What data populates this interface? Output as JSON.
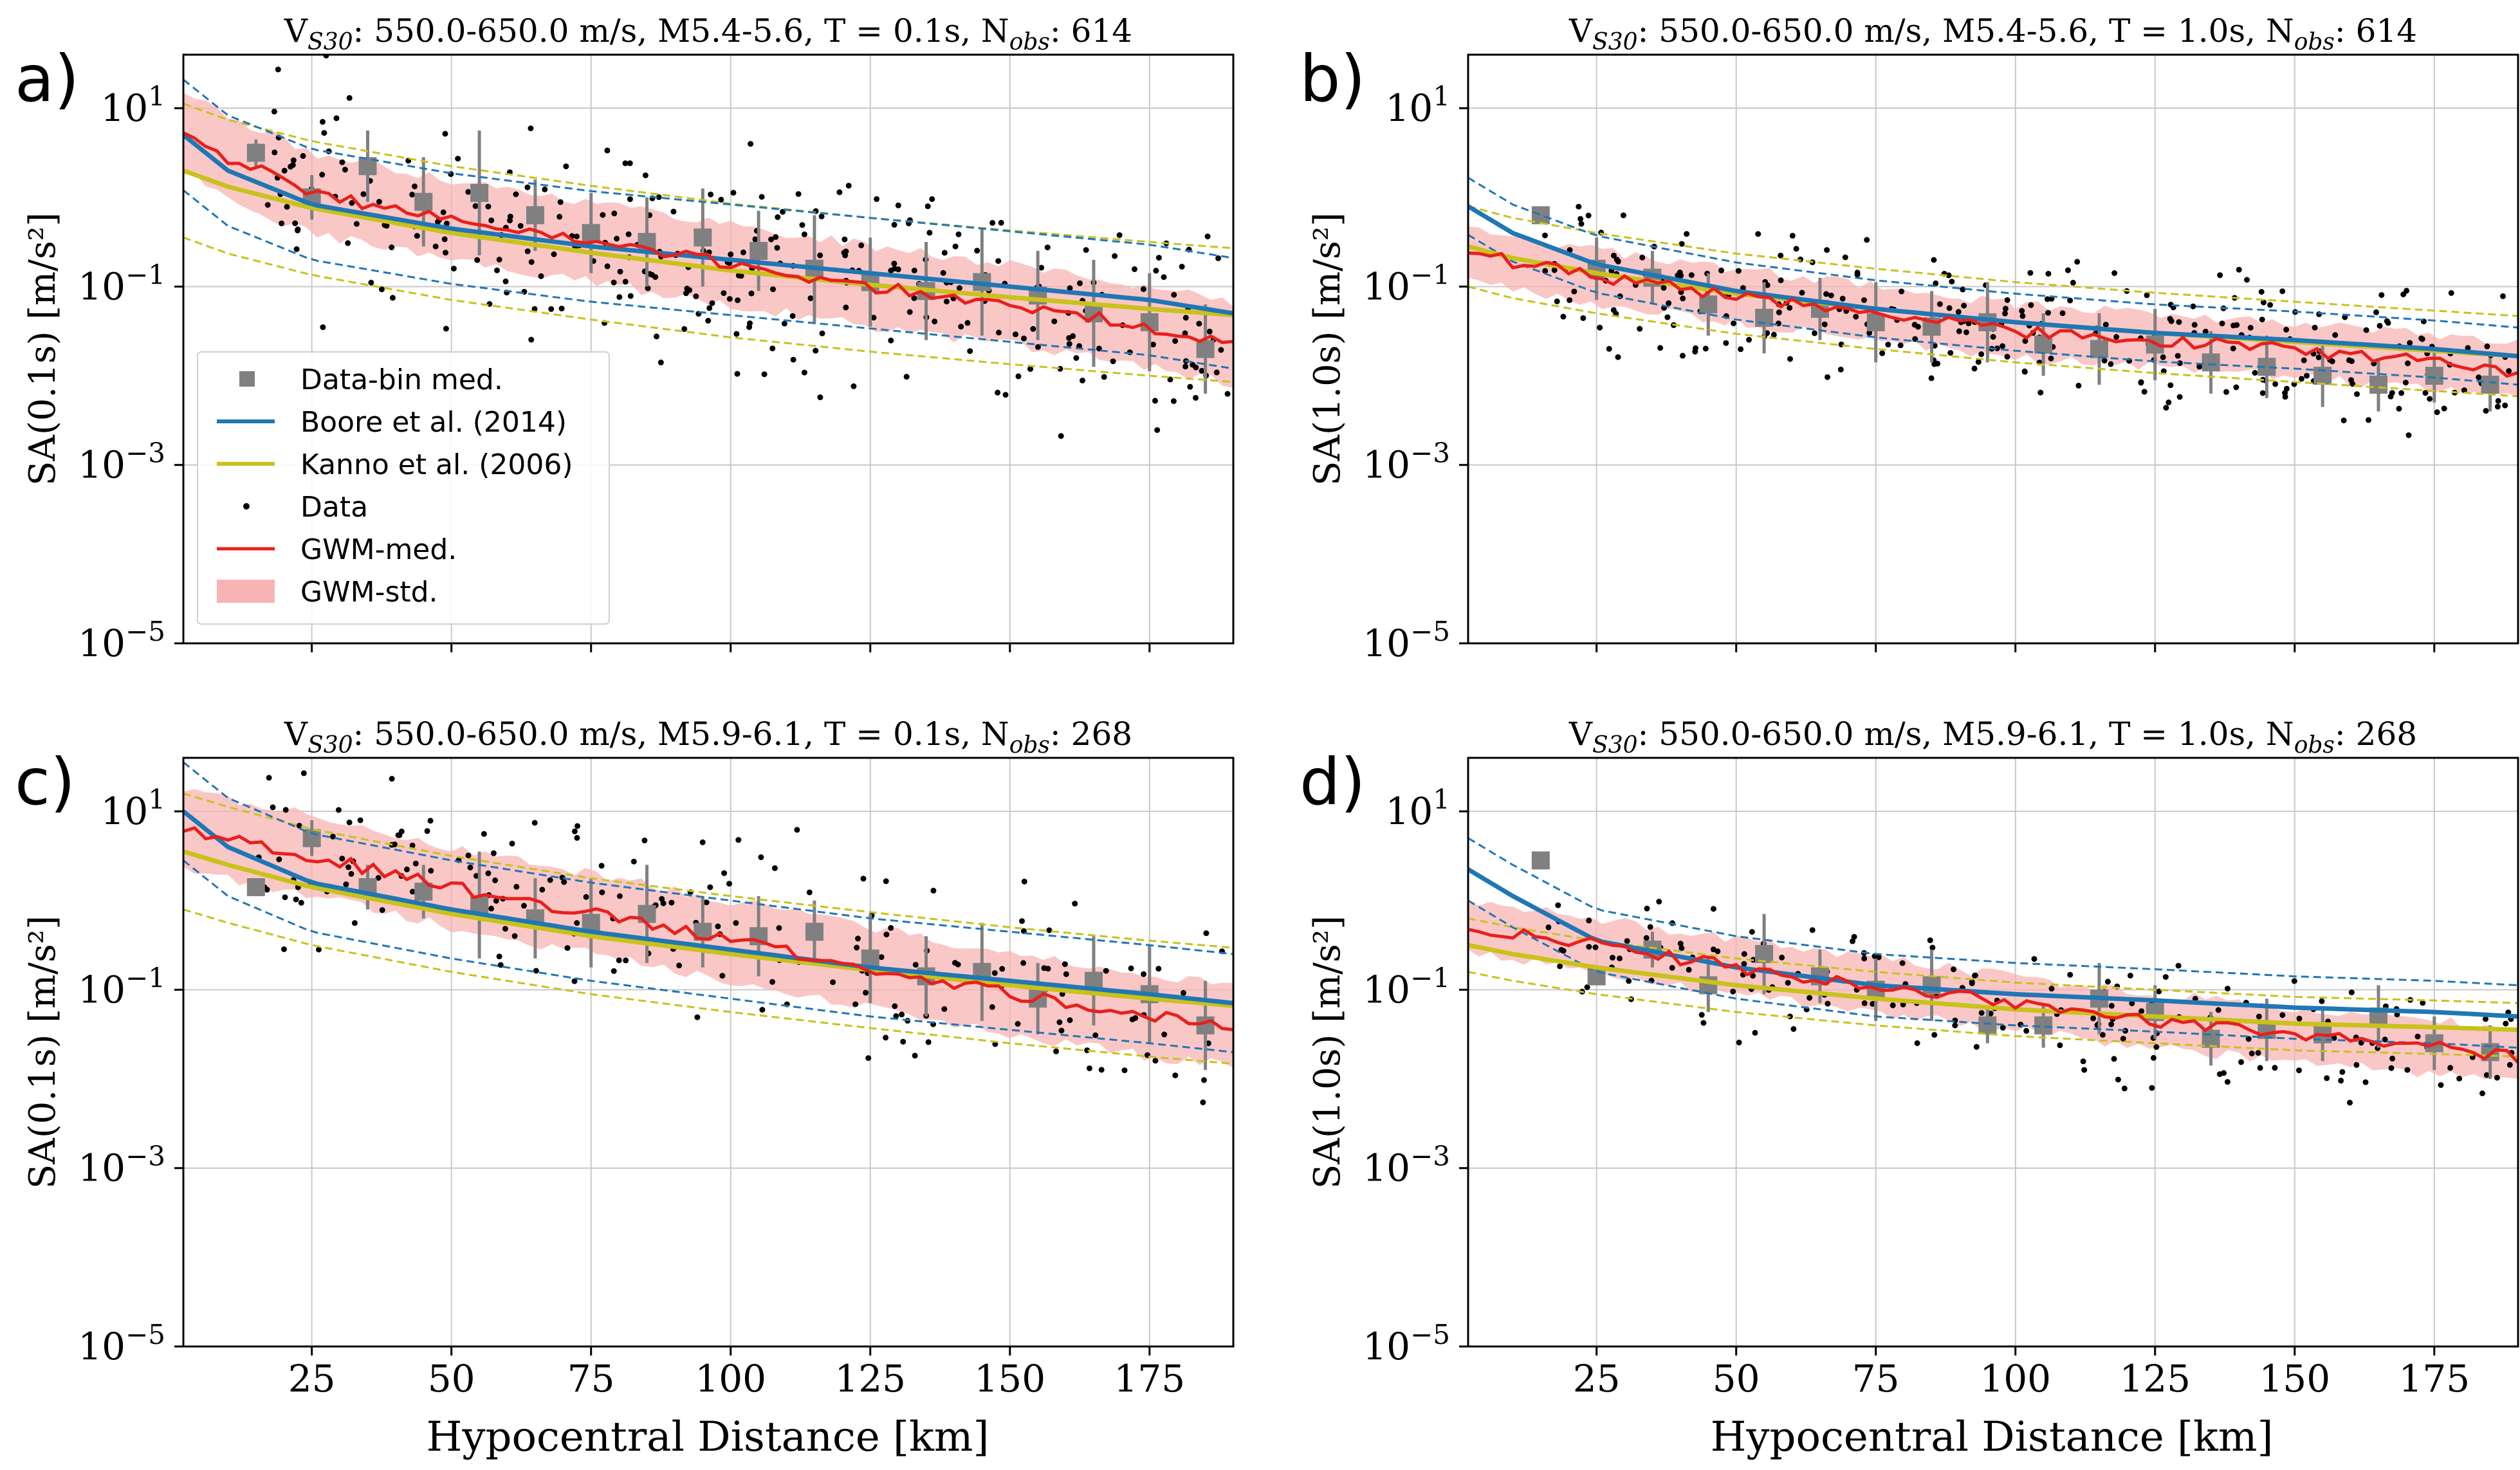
{
  "figure": {
    "xlabel": "Hypocentral Distance [km]",
    "legend": {
      "items": [
        {
          "key": "bins",
          "label": "Data-bin med."
        },
        {
          "key": "boore",
          "label": "Boore et al. (2014)"
        },
        {
          "key": "kanno",
          "label": "Kanno et al. (2006)"
        },
        {
          "key": "data",
          "label": "Data"
        },
        {
          "key": "gwm",
          "label": "GWM-med."
        },
        {
          "key": "gwmstd",
          "label": "GWM-std."
        }
      ]
    }
  },
  "colors": {
    "boore": "#1f77b4",
    "kanno": "#c8c21a",
    "gwm": "#e8201c",
    "gwm_band": "#f8b4b4",
    "bins": "#808080",
    "data": "#000000",
    "grid": "#c8c8c8"
  },
  "chart_data": [
    {
      "type": "line",
      "panel_letter": "a)",
      "title": {
        "vs_prefix": "V",
        "vs_sub": "S30",
        "range": ": 550.0-650.0 m/s,  M5.4-5.6, T = 0.1s, N",
        "n_sub": "obs",
        "n_val": ": 614"
      },
      "ylabel": "SA(0.1s) [m/s²]",
      "xlim": [
        2,
        190
      ],
      "ylim_log10": [
        -5,
        1.6
      ],
      "xticks": [
        25,
        50,
        75,
        100,
        125,
        150,
        175
      ],
      "yticks_exp": [
        -5,
        -3,
        -1,
        1
      ],
      "show_xticklabels": false,
      "show_legend": true,
      "boore": {
        "log10_at_d": [
          [
            2,
            0.7
          ],
          [
            10,
            0.3
          ],
          [
            25,
            -0.08
          ],
          [
            50,
            -0.35
          ],
          [
            75,
            -0.55
          ],
          [
            100,
            -0.7
          ],
          [
            125,
            -0.85
          ],
          [
            150,
            -1.0
          ],
          [
            175,
            -1.15
          ],
          [
            190,
            -1.3
          ]
        ],
        "sigma": 0.62
      },
      "kanno": {
        "log10_at_d": [
          [
            2,
            0.3
          ],
          [
            10,
            0.12
          ],
          [
            25,
            -0.12
          ],
          [
            50,
            -0.4
          ],
          [
            75,
            -0.62
          ],
          [
            100,
            -0.82
          ],
          [
            125,
            -0.98
          ],
          [
            150,
            -1.12
          ],
          [
            175,
            -1.25
          ],
          [
            190,
            -1.32
          ]
        ],
        "sigma": 0.75
      },
      "gwm": {
        "log10_at_d": [
          [
            2,
            0.75
          ],
          [
            10,
            0.45
          ],
          [
            25,
            0.05
          ],
          [
            50,
            -0.25
          ],
          [
            75,
            -0.5
          ],
          [
            100,
            -0.75
          ],
          [
            125,
            -1.0
          ],
          [
            150,
            -1.2
          ],
          [
            175,
            -1.45
          ],
          [
            190,
            -1.65
          ]
        ],
        "band_halfwidth": 0.45
      },
      "bins": {
        "d": [
          15,
          25,
          35,
          45,
          55,
          65,
          75,
          85,
          95,
          105,
          115,
          125,
          135,
          145,
          155,
          165,
          175,
          185
        ],
        "log10": [
          0.5,
          0.0,
          0.35,
          -0.05,
          0.05,
          -0.2,
          -0.4,
          -0.5,
          -0.45,
          -0.6,
          -0.8,
          -0.95,
          -1.05,
          -0.95,
          -1.1,
          -1.3,
          -1.4,
          -1.7
        ],
        "err": [
          0.15,
          0.25,
          0.4,
          0.5,
          0.7,
          0.4,
          0.45,
          0.5,
          0.55,
          0.45,
          0.6,
          0.5,
          0.55,
          0.6,
          0.5,
          0.6,
          0.55,
          0.5
        ]
      },
      "data_scatter": {
        "n_points": 320,
        "spread": 0.55,
        "seed": 11
      }
    },
    {
      "type": "line",
      "panel_letter": "b)",
      "title": {
        "vs_prefix": "V",
        "vs_sub": "S30",
        "range": ": 550.0-650.0 m/s,  M5.4-5.6, T = 1.0s, N",
        "n_sub": "obs",
        "n_val": ": 614"
      },
      "ylabel": "SA(1.0s) [m/s²]",
      "xlim": [
        2,
        190
      ],
      "ylim_log10": [
        -5,
        1.6
      ],
      "xticks": [
        25,
        50,
        75,
        100,
        125,
        150,
        175
      ],
      "yticks_exp": [
        -5,
        -3,
        -1,
        1
      ],
      "show_xticklabels": false,
      "show_legend": false,
      "boore": {
        "log10_at_d": [
          [
            2,
            -0.1
          ],
          [
            10,
            -0.4
          ],
          [
            25,
            -0.75
          ],
          [
            50,
            -1.05
          ],
          [
            75,
            -1.25
          ],
          [
            100,
            -1.4
          ],
          [
            125,
            -1.52
          ],
          [
            150,
            -1.6
          ],
          [
            175,
            -1.7
          ],
          [
            190,
            -1.78
          ]
        ],
        "sigma": 0.32
      },
      "kanno": {
        "log10_at_d": [
          [
            2,
            -0.55
          ],
          [
            10,
            -0.68
          ],
          [
            25,
            -0.85
          ],
          [
            50,
            -1.08
          ],
          [
            75,
            -1.25
          ],
          [
            100,
            -1.4
          ],
          [
            125,
            -1.52
          ],
          [
            150,
            -1.62
          ],
          [
            175,
            -1.72
          ],
          [
            190,
            -1.78
          ]
        ],
        "sigma": 0.45
      },
      "gwm": {
        "log10_at_d": [
          [
            2,
            -0.6
          ],
          [
            10,
            -0.72
          ],
          [
            25,
            -0.9
          ],
          [
            50,
            -1.1
          ],
          [
            75,
            -1.3
          ],
          [
            100,
            -1.5
          ],
          [
            125,
            -1.6
          ],
          [
            150,
            -1.7
          ],
          [
            175,
            -1.85
          ],
          [
            190,
            -1.95
          ]
        ],
        "band_halfwidth": 0.3
      },
      "bins": {
        "d": [
          15,
          25,
          35,
          45,
          55,
          65,
          75,
          85,
          95,
          105,
          115,
          125,
          135,
          145,
          155,
          165,
          175,
          185
        ],
        "log10": [
          -0.2,
          -0.8,
          -0.9,
          -1.2,
          -1.35,
          -1.25,
          -1.4,
          -1.45,
          -1.4,
          -1.65,
          -1.7,
          -1.65,
          -1.85,
          -1.9,
          -2.0,
          -2.1,
          -2.0,
          -2.1
        ],
        "err": [
          0.05,
          0.35,
          0.3,
          0.35,
          0.4,
          0.35,
          0.45,
          0.4,
          0.45,
          0.35,
          0.4,
          0.4,
          0.35,
          0.35,
          0.35,
          0.3,
          0.3,
          0.3
        ]
      },
      "data_scatter": {
        "n_points": 320,
        "spread": 0.38,
        "seed": 23
      }
    },
    {
      "type": "line",
      "panel_letter": "c)",
      "title": {
        "vs_prefix": "V",
        "vs_sub": "S30",
        "range": ": 550.0-650.0 m/s,  M5.9-6.1, T = 0.1s, N",
        "n_sub": "obs",
        "n_val": ": 268"
      },
      "ylabel": "SA(0.1s) [m/s²]",
      "xlim": [
        2,
        190
      ],
      "ylim_log10": [
        -5,
        1.6
      ],
      "xticks": [
        25,
        50,
        75,
        100,
        125,
        150,
        175
      ],
      "yticks_exp": [
        -5,
        -3,
        -1,
        1
      ],
      "show_xticklabels": true,
      "show_legend": false,
      "boore": {
        "log10_at_d": [
          [
            2,
            1.0
          ],
          [
            10,
            0.6
          ],
          [
            25,
            0.2
          ],
          [
            50,
            -0.1
          ],
          [
            75,
            -0.35
          ],
          [
            100,
            -0.55
          ],
          [
            125,
            -0.75
          ],
          [
            150,
            -0.9
          ],
          [
            175,
            -1.05
          ],
          [
            190,
            -1.15
          ]
        ],
        "sigma": 0.55
      },
      "kanno": {
        "log10_at_d": [
          [
            2,
            0.55
          ],
          [
            10,
            0.4
          ],
          [
            25,
            0.15
          ],
          [
            50,
            -0.15
          ],
          [
            75,
            -0.4
          ],
          [
            100,
            -0.6
          ],
          [
            125,
            -0.78
          ],
          [
            150,
            -0.95
          ],
          [
            175,
            -1.1
          ],
          [
            190,
            -1.18
          ]
        ],
        "sigma": 0.65
      },
      "gwm": {
        "log10_at_d": [
          [
            2,
            0.8
          ],
          [
            10,
            0.7
          ],
          [
            25,
            0.5
          ],
          [
            50,
            0.15
          ],
          [
            75,
            -0.15
          ],
          [
            100,
            -0.45
          ],
          [
            125,
            -0.75
          ],
          [
            150,
            -1.05
          ],
          [
            175,
            -1.3
          ],
          [
            190,
            -1.4
          ]
        ],
        "band_halfwidth": 0.45
      },
      "bins": {
        "d": [
          15,
          25,
          35,
          45,
          55,
          65,
          75,
          85,
          95,
          105,
          115,
          125,
          135,
          145,
          155,
          165,
          175,
          185
        ],
        "log10": [
          0.15,
          0.7,
          0.15,
          0.1,
          -0.05,
          -0.2,
          -0.25,
          -0.15,
          -0.35,
          -0.4,
          -0.35,
          -0.65,
          -0.85,
          -0.8,
          -1.1,
          -0.9,
          -1.05,
          -1.4
        ],
        "err": [
          0.1,
          0.2,
          0.25,
          0.3,
          0.6,
          0.45,
          0.5,
          0.55,
          0.4,
          0.45,
          0.35,
          0.5,
          0.45,
          0.55,
          0.4,
          0.5,
          0.55,
          0.5
        ]
      },
      "data_scatter": {
        "n_points": 200,
        "spread": 0.5,
        "seed": 37
      }
    },
    {
      "type": "line",
      "panel_letter": "d)",
      "title": {
        "vs_prefix": "V",
        "vs_sub": "S30",
        "range": ": 550.0-650.0 m/s,  M5.9-6.1, T = 1.0s, N",
        "n_sub": "obs",
        "n_val": ": 268"
      },
      "ylabel": "SA(1.0s) [m/s²]",
      "xlim": [
        2,
        190
      ],
      "ylim_log10": [
        -5,
        1.6
      ],
      "xticks": [
        25,
        50,
        75,
        100,
        125,
        150,
        175
      ],
      "yticks_exp": [
        -5,
        -3,
        -1,
        1
      ],
      "show_xticklabels": true,
      "show_legend": false,
      "boore": {
        "log10_at_d": [
          [
            2,
            0.35
          ],
          [
            10,
            0.05
          ],
          [
            25,
            -0.45
          ],
          [
            50,
            -0.75
          ],
          [
            75,
            -0.95
          ],
          [
            100,
            -1.05
          ],
          [
            125,
            -1.12
          ],
          [
            150,
            -1.2
          ],
          [
            175,
            -1.25
          ],
          [
            190,
            -1.3
          ]
        ],
        "sigma": 0.35
      },
      "kanno": {
        "log10_at_d": [
          [
            2,
            -0.5
          ],
          [
            10,
            -0.6
          ],
          [
            25,
            -0.75
          ],
          [
            50,
            -0.95
          ],
          [
            75,
            -1.1
          ],
          [
            100,
            -1.22
          ],
          [
            125,
            -1.3
          ],
          [
            150,
            -1.38
          ],
          [
            175,
            -1.42
          ],
          [
            190,
            -1.45
          ]
        ],
        "sigma": 0.3
      },
      "gwm": {
        "log10_at_d": [
          [
            2,
            -0.3
          ],
          [
            10,
            -0.35
          ],
          [
            25,
            -0.5
          ],
          [
            50,
            -0.75
          ],
          [
            75,
            -0.95
          ],
          [
            100,
            -1.15
          ],
          [
            125,
            -1.35
          ],
          [
            150,
            -1.5
          ],
          [
            175,
            -1.65
          ],
          [
            190,
            -1.75
          ]
        ],
        "band_halfwidth": 0.3
      },
      "bins": {
        "d": [
          15,
          25,
          35,
          45,
          55,
          65,
          75,
          85,
          95,
          105,
          115,
          125,
          135,
          145,
          155,
          165,
          175,
          185
        ],
        "log10": [
          0.45,
          -0.85,
          -0.55,
          -0.95,
          -0.6,
          -0.85,
          -1.0,
          -0.95,
          -1.4,
          -1.4,
          -1.1,
          -1.25,
          -1.55,
          -1.45,
          -1.5,
          -1.3,
          -1.6,
          -1.7
        ],
        "err": [
          0.05,
          0.1,
          0.2,
          0.3,
          0.45,
          0.3,
          0.35,
          0.4,
          0.2,
          0.25,
          0.4,
          0.3,
          0.3,
          0.35,
          0.3,
          0.35,
          0.3,
          0.3
        ]
      },
      "data_scatter": {
        "n_points": 200,
        "spread": 0.35,
        "seed": 53
      }
    }
  ]
}
